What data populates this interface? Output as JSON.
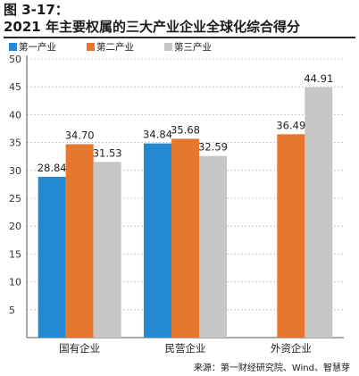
{
  "figure": {
    "label": "图 3-17：",
    "title": "2021 年主要权属的三大产业企业全球化综合得分",
    "source": "来源：第一财经研究院、Wind、智慧芽"
  },
  "colors": {
    "series": [
      "#2389d0",
      "#e6772e",
      "#c6c6c6"
    ]
  },
  "chart_data": {
    "type": "bar",
    "categories": [
      "国有企业",
      "民营企业",
      "外资企业"
    ],
    "series": [
      {
        "name": "第一产业",
        "values": [
          28.84,
          34.84,
          null
        ]
      },
      {
        "name": "第二产业",
        "values": [
          34.7,
          35.68,
          36.49
        ]
      },
      {
        "name": "第三产业",
        "values": [
          31.53,
          32.59,
          44.91
        ]
      }
    ],
    "data_labels": [
      [
        "28.84",
        "34.84",
        ""
      ],
      [
        "34.70",
        "35.68",
        "36.49"
      ],
      [
        "31.53",
        "32.59",
        "44.91"
      ]
    ],
    "title": "",
    "xlabel": "",
    "ylabel": "",
    "ylim": [
      0,
      50
    ],
    "yticks": [
      5,
      10,
      15,
      20,
      25,
      30,
      35,
      40,
      45,
      50
    ],
    "grid": true,
    "legend": "top-left"
  }
}
